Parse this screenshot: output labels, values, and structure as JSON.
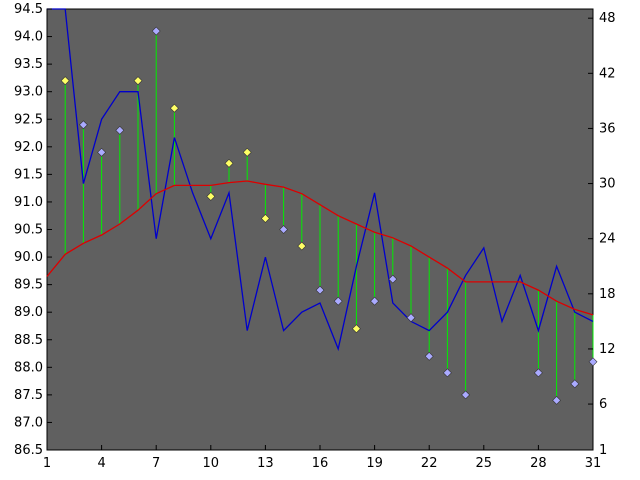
{
  "chart_data": {
    "type": "line",
    "title": "",
    "xlabel": "",
    "ylabel": "",
    "xlim": [
      1,
      31
    ],
    "ylim": [
      86.5,
      94.5
    ],
    "y2lim": [
      1,
      49
    ],
    "x_ticks": [
      1,
      4,
      7,
      10,
      13,
      16,
      19,
      22,
      25,
      28,
      31
    ],
    "y_ticks": [
      86.5,
      87.0,
      87.5,
      88.0,
      88.5,
      89.0,
      89.5,
      90.0,
      90.5,
      91.0,
      91.5,
      92.0,
      92.5,
      93.0,
      93.5,
      94.0,
      94.5
    ],
    "y2_ticks": [
      1,
      6,
      12,
      18,
      24,
      30,
      36,
      42,
      48
    ],
    "y_tick_labels": [
      "86.5",
      "87.0",
      "87.5",
      "88.0",
      "88.5",
      "89.0",
      "89.5",
      "90.0",
      "90.5",
      "91.0",
      "91.5",
      "92.0",
      "92.5",
      "93.0",
      "93.5",
      "94.0",
      "94.5"
    ],
    "grid": false,
    "legend": false,
    "background": "#606060",
    "series": [
      {
        "kind": "line",
        "axis": "right",
        "color": "#0000cc",
        "x": [
          1,
          2,
          3,
          4,
          5,
          6,
          7,
          8,
          9,
          10,
          11,
          12,
          13,
          14,
          15,
          16,
          17,
          18,
          19,
          20,
          21,
          22,
          23,
          24,
          25,
          26,
          27,
          28,
          29,
          30,
          31
        ],
        "y": [
          49,
          49,
          30,
          37,
          40,
          40,
          24,
          35,
          29,
          24,
          29,
          14,
          22,
          14,
          16,
          17,
          12,
          21,
          29,
          17,
          15,
          14,
          16,
          20,
          23,
          15,
          20,
          14,
          21,
          16,
          15
        ]
      },
      {
        "kind": "line",
        "axis": "left",
        "color": "#dd0000",
        "x": [
          1,
          2,
          3,
          4,
          5,
          6,
          7,
          8,
          9,
          10,
          11,
          12,
          13,
          14,
          15,
          16,
          17,
          18,
          19,
          20,
          21,
          22,
          23,
          24,
          25,
          26,
          27,
          28,
          29,
          30,
          31
        ],
        "y": [
          89.65,
          90.05,
          90.25,
          90.4,
          90.6,
          90.85,
          91.15,
          91.3,
          91.3,
          91.3,
          91.35,
          91.38,
          91.32,
          91.27,
          91.15,
          90.95,
          90.75,
          90.6,
          90.45,
          90.35,
          90.2,
          90.0,
          89.8,
          89.55,
          89.55,
          89.55,
          89.55,
          89.4,
          89.2,
          89.05,
          88.95
        ]
      },
      {
        "kind": "marker",
        "axis": "left",
        "color": "#ffff66",
        "x": [
          2,
          6,
          8,
          10,
          11,
          12,
          13,
          15,
          18
        ],
        "y": [
          93.2,
          93.2,
          92.7,
          91.1,
          91.7,
          91.9,
          90.7,
          90.2,
          88.7
        ]
      },
      {
        "kind": "marker",
        "axis": "left",
        "color": "#aaaaff",
        "x": [
          3,
          4,
          5,
          7,
          14,
          16,
          17,
          19,
          20,
          21,
          22,
          23,
          24,
          28,
          29,
          30,
          31
        ],
        "y": [
          92.4,
          91.9,
          92.3,
          94.1,
          90.5,
          89.4,
          89.2,
          89.2,
          89.6,
          88.9,
          88.2,
          87.9,
          87.5,
          87.9,
          87.4,
          87.7,
          88.1
        ]
      }
    ],
    "stems": {
      "color": "#00ee00",
      "description_source": "vertical line from each marker down/up to the red line"
    }
  }
}
